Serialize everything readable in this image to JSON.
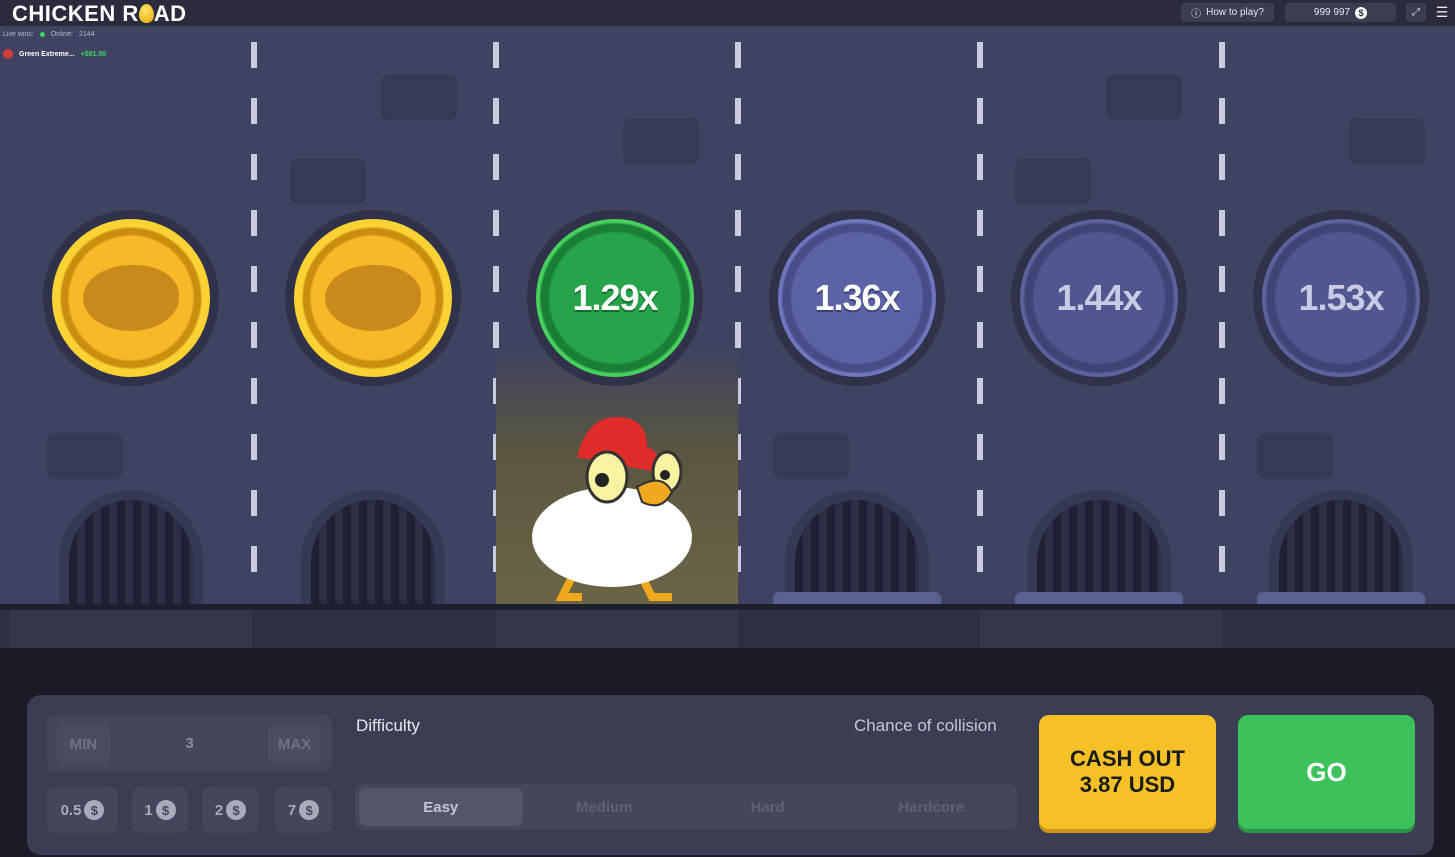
{
  "header": {
    "logo": "CHICKEN ROAD",
    "logo_pre": "CHICKEN R",
    "logo_post": "AD",
    "how_to_play": "How to play?",
    "balance": "999 997",
    "currency_icon": "$"
  },
  "live": {
    "label": "Live wins:",
    "online_label": "Online:",
    "online_count": "2144",
    "win_user": "Green Extreme...",
    "win_amount": "+$81.50"
  },
  "lanes": [
    {
      "state": "passed"
    },
    {
      "state": "passed"
    },
    {
      "state": "current",
      "multiplier": "1.29x"
    },
    {
      "state": "next",
      "multiplier": "1.36x"
    },
    {
      "state": "upcoming",
      "multiplier": "1.44x"
    },
    {
      "state": "upcoming",
      "multiplier": "1.53x"
    }
  ],
  "bet": {
    "min": "MIN",
    "value": "3",
    "max": "MAX",
    "chips": [
      "0.5",
      "1",
      "2",
      "7"
    ]
  },
  "difficulty": {
    "label": "Difficulty",
    "chance_label": "Chance of collision",
    "options": [
      "Easy",
      "Medium",
      "Hard",
      "Hardcore"
    ],
    "selected": "Easy"
  },
  "actions": {
    "cashout_line1": "CASH OUT",
    "cashout_line2": "3.87 USD",
    "go": "GO"
  },
  "colors": {
    "gold": "#f7b928",
    "green": "#27a34a",
    "blue": "#5b62a5",
    "cashout": "#f5c127",
    "go": "#3dc15a"
  }
}
